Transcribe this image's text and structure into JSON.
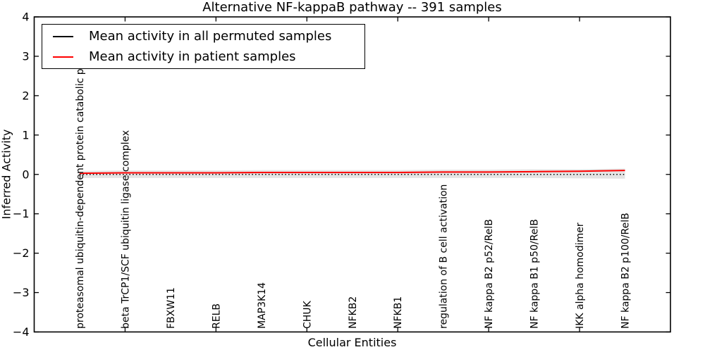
{
  "chart_data": {
    "type": "line",
    "title": "Alternative NF-kappaB pathway -- 391 samples",
    "xlabel": "Cellular Entities",
    "ylabel": "Inferred Activity",
    "ylim": [
      -4,
      4
    ],
    "xlim": [
      -1,
      13
    ],
    "yticks": [
      -4,
      -3,
      -2,
      -1,
      0,
      1,
      2,
      3,
      4
    ],
    "xtick_data_indices": [
      1,
      3,
      5,
      7,
      9,
      11
    ],
    "grid": false,
    "categories": [
      "proteasomal ubiquitin-dependent protein catabolic pr",
      "beta TrCP1/SCF ubiquitin ligase complex",
      "FBXW11",
      "RELB",
      "MAP3K14",
      "CHUK",
      "NFKB2",
      "NFKB1",
      "regulation of B cell activation",
      "NF kappa B2 p52/RelB",
      "NF kappa B1 p50/RelB",
      "IKK alpha homodimer",
      "NF kappa B2 p100/RelB"
    ],
    "series": [
      {
        "name": "Mean activity in all permuted samples",
        "color": "#000000",
        "linestyle": "dotted",
        "values": [
          0,
          0,
          0,
          0,
          0,
          0,
          0,
          0,
          0,
          0,
          0,
          0,
          0
        ]
      },
      {
        "name": "Mean activity in patient samples",
        "color": "#ff0000",
        "linestyle": "solid",
        "values": [
          0.03,
          0.04,
          0.04,
          0.04,
          0.05,
          0.05,
          0.05,
          0.05,
          0.06,
          0.06,
          0.07,
          0.08,
          0.1
        ]
      }
    ],
    "band": {
      "color": "#e4e4e4",
      "upper": [
        0.09,
        0.1,
        0.1,
        0.1,
        0.11,
        0.11,
        0.11,
        0.11,
        0.12,
        0.12,
        0.13,
        0.13,
        0.15
      ],
      "lower": [
        -0.09,
        -0.09,
        -0.09,
        -0.09,
        -0.09,
        -0.09,
        -0.09,
        -0.09,
        -0.09,
        -0.09,
        -0.09,
        -0.1,
        -0.11
      ]
    },
    "legend": {
      "position": "upper left",
      "entries": [
        {
          "label": "Mean activity in all permuted samples",
          "color": "#000000"
        },
        {
          "label": "Mean activity in patient samples",
          "color": "#ff0000"
        }
      ]
    }
  },
  "colors": {
    "background": "#ffffff",
    "axis": "#000000",
    "text": "#000000"
  }
}
